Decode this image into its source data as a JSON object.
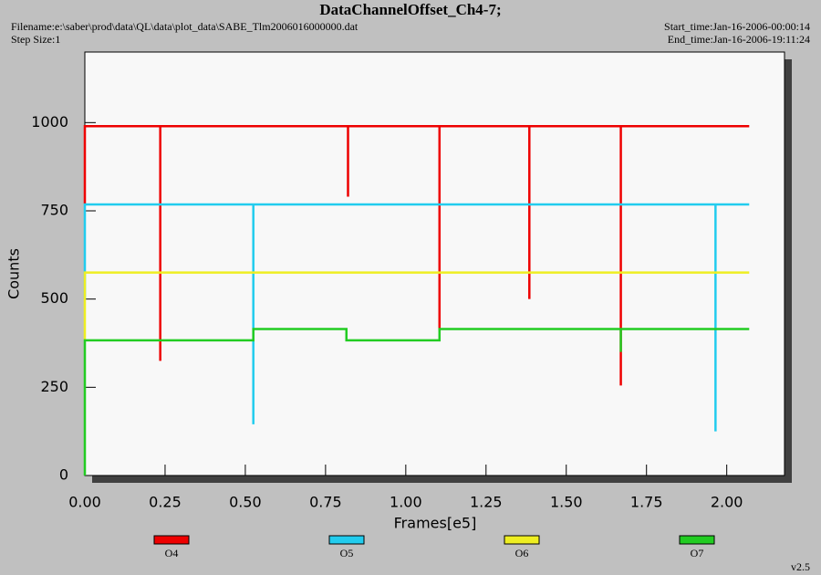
{
  "chart_data": {
    "type": "line",
    "title": "DataChannelOffset_Ch4-7;",
    "filename": "Filename:e:\\saber\\prod\\data\\QL\\data\\plot_data\\SABE_Tlm2006016000000.dat",
    "step_size": "Step Size:1",
    "start_time": "Start_time:Jan-16-2006-00:00:14",
    "end_time": "End_time:Jan-16-2006-19:11:24",
    "xlabel": "Frames[e5]",
    "ylabel": "Counts",
    "version": "v2.5",
    "xlim": [
      0,
      2.18
    ],
    "ylim": [
      0,
      1200
    ],
    "xticks": [
      {
        "value": 0,
        "label": "0.00"
      },
      {
        "value": 0.25,
        "label": "0.25"
      },
      {
        "value": 0.5,
        "label": "0.50"
      },
      {
        "value": 0.75,
        "label": "0.75"
      },
      {
        "value": 1,
        "label": "1.00"
      },
      {
        "value": 1.25,
        "label": "1.25"
      },
      {
        "value": 1.5,
        "label": "1.50"
      },
      {
        "value": 1.75,
        "label": "1.75"
      },
      {
        "value": 2,
        "label": "2.00"
      }
    ],
    "yticks": [
      0,
      250,
      500,
      750,
      1000
    ],
    "series": [
      {
        "name": "O4",
        "color": "#ee0000",
        "x": [
          0,
          0,
          0.235,
          0.235,
          0.235,
          0.82,
          0.82,
          0.82,
          1.105,
          1.105,
          1.105,
          1.385,
          1.385,
          1.385,
          1.67,
          1.67,
          1.67,
          2.07
        ],
        "values": [
          770,
          990,
          990,
          325,
          990,
          990,
          790,
          990,
          990,
          410,
          990,
          990,
          500,
          990,
          990,
          255,
          990,
          990
        ]
      },
      {
        "name": "O5",
        "color": "#22ccee",
        "x": [
          0,
          0,
          0.525,
          0.525,
          0.525,
          1.965,
          1.965,
          1.965,
          2.07
        ],
        "values": [
          500,
          768,
          768,
          145,
          768,
          768,
          125,
          768,
          768
        ]
      },
      {
        "name": "O6",
        "color": "#eeee22",
        "x": [
          0,
          0,
          2.07
        ],
        "values": [
          385,
          575,
          575
        ]
      },
      {
        "name": "O7",
        "color": "#22cc22",
        "x": [
          0,
          0,
          0.525,
          0.525,
          0.815,
          0.815,
          1.105,
          1.105,
          1.67,
          1.67,
          1.67,
          2.07
        ],
        "values": [
          0,
          383,
          383,
          415,
          415,
          383,
          383,
          415,
          415,
          350,
          415,
          415
        ]
      }
    ]
  }
}
